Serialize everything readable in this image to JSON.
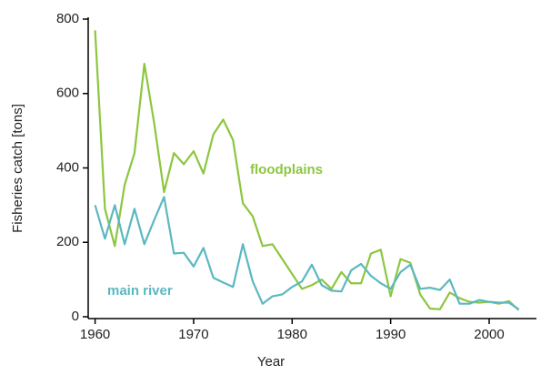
{
  "chart_data": {
    "type": "line",
    "x_label": "Year",
    "y_label": "Fisheries catch [tons]",
    "x": [
      1960,
      1961,
      1962,
      1963,
      1964,
      1965,
      1966,
      1967,
      1968,
      1969,
      1970,
      1971,
      1972,
      1973,
      1974,
      1975,
      1976,
      1977,
      1978,
      1979,
      1980,
      1981,
      1982,
      1983,
      1984,
      1985,
      1986,
      1987,
      1988,
      1989,
      1990,
      1991,
      1992,
      1993,
      1994,
      1995,
      1996,
      1997,
      1998,
      1999,
      2000,
      2001,
      2002,
      2003
    ],
    "series": [
      {
        "name": "floodplains",
        "color": "#8dc63f",
        "values": [
          770,
          290,
          190,
          355,
          440,
          680,
          520,
          335,
          440,
          410,
          445,
          385,
          490,
          530,
          475,
          305,
          270,
          190,
          195,
          155,
          115,
          75,
          85,
          100,
          75,
          120,
          90,
          90,
          170,
          180,
          55,
          155,
          145,
          60,
          22,
          20,
          65,
          50,
          40,
          38,
          40,
          35,
          42,
          18
        ]
      },
      {
        "name": "main river",
        "color": "#5bb8c1",
        "values": [
          300,
          210,
          300,
          195,
          290,
          195,
          260,
          322,
          170,
          172,
          135,
          185,
          105,
          92,
          80,
          195,
          95,
          35,
          55,
          60,
          80,
          95,
          140,
          85,
          70,
          68,
          125,
          142,
          110,
          90,
          75,
          120,
          140,
          75,
          78,
          72,
          100,
          35,
          35,
          45,
          40,
          38,
          38,
          20
        ]
      }
    ],
    "xlim": [
      1959.3,
      2004.8
    ],
    "xticks": [
      1960,
      1970,
      1980,
      1990,
      2000
    ],
    "ylim": [
      0,
      800
    ],
    "yticks": [
      0,
      200,
      400,
      600,
      800
    ]
  }
}
